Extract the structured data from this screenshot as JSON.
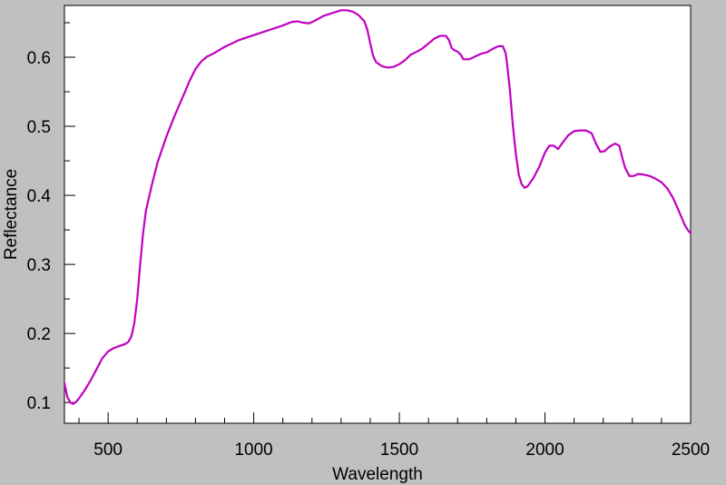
{
  "chart_data": {
    "type": "line",
    "title": "",
    "xlabel": "Wavelength",
    "ylabel": "Reflectance",
    "xlim": [
      350,
      2500
    ],
    "ylim": [
      0.07,
      0.675
    ],
    "x_ticks": [
      500,
      1000,
      1500,
      2000,
      2500
    ],
    "y_ticks": [
      0.1,
      0.2,
      0.3,
      0.4,
      0.5,
      0.6
    ],
    "x_tick_labels": [
      "500",
      "1000",
      "1500",
      "2000",
      "2500"
    ],
    "y_tick_labels": [
      "0.1",
      "0.2",
      "0.3",
      "0.4",
      "0.5",
      "0.6"
    ],
    "x_minor_step": 100,
    "y_minor_step": 0.05,
    "grid": false,
    "legend": "none",
    "plot_background": "#ffffff",
    "page_background": "#c0c0c0",
    "series": [
      {
        "color": "#c000c0",
        "points": [
          [
            350,
            0.128
          ],
          [
            360,
            0.108
          ],
          [
            370,
            0.1
          ],
          [
            380,
            0.098
          ],
          [
            390,
            0.101
          ],
          [
            400,
            0.106
          ],
          [
            420,
            0.118
          ],
          [
            440,
            0.132
          ],
          [
            460,
            0.148
          ],
          [
            480,
            0.164
          ],
          [
            500,
            0.174
          ],
          [
            520,
            0.179
          ],
          [
            540,
            0.182
          ],
          [
            560,
            0.185
          ],
          [
            570,
            0.188
          ],
          [
            580,
            0.196
          ],
          [
            590,
            0.215
          ],
          [
            600,
            0.25
          ],
          [
            610,
            0.3
          ],
          [
            620,
            0.345
          ],
          [
            630,
            0.378
          ],
          [
            650,
            0.415
          ],
          [
            670,
            0.448
          ],
          [
            700,
            0.485
          ],
          [
            730,
            0.517
          ],
          [
            760,
            0.546
          ],
          [
            780,
            0.566
          ],
          [
            800,
            0.583
          ],
          [
            820,
            0.594
          ],
          [
            840,
            0.601
          ],
          [
            860,
            0.605
          ],
          [
            880,
            0.61
          ],
          [
            900,
            0.615
          ],
          [
            950,
            0.625
          ],
          [
            1000,
            0.632
          ],
          [
            1050,
            0.639
          ],
          [
            1100,
            0.646
          ],
          [
            1130,
            0.651
          ],
          [
            1150,
            0.652
          ],
          [
            1170,
            0.65
          ],
          [
            1190,
            0.649
          ],
          [
            1210,
            0.653
          ],
          [
            1240,
            0.66
          ],
          [
            1270,
            0.664
          ],
          [
            1300,
            0.668
          ],
          [
            1320,
            0.668
          ],
          [
            1340,
            0.666
          ],
          [
            1360,
            0.661
          ],
          [
            1380,
            0.652
          ],
          [
            1390,
            0.64
          ],
          [
            1400,
            0.62
          ],
          [
            1410,
            0.602
          ],
          [
            1420,
            0.593
          ],
          [
            1440,
            0.587
          ],
          [
            1460,
            0.585
          ],
          [
            1480,
            0.586
          ],
          [
            1500,
            0.59
          ],
          [
            1520,
            0.596
          ],
          [
            1540,
            0.604
          ],
          [
            1560,
            0.608
          ],
          [
            1580,
            0.613
          ],
          [
            1600,
            0.62
          ],
          [
            1620,
            0.627
          ],
          [
            1640,
            0.631
          ],
          [
            1660,
            0.631
          ],
          [
            1670,
            0.625
          ],
          [
            1680,
            0.613
          ],
          [
            1690,
            0.61
          ],
          [
            1700,
            0.608
          ],
          [
            1710,
            0.604
          ],
          [
            1720,
            0.597
          ],
          [
            1740,
            0.597
          ],
          [
            1760,
            0.601
          ],
          [
            1780,
            0.605
          ],
          [
            1800,
            0.607
          ],
          [
            1820,
            0.612
          ],
          [
            1840,
            0.616
          ],
          [
            1855,
            0.616
          ],
          [
            1865,
            0.606
          ],
          [
            1870,
            0.59
          ],
          [
            1880,
            0.55
          ],
          [
            1890,
            0.5
          ],
          [
            1900,
            0.46
          ],
          [
            1910,
            0.43
          ],
          [
            1920,
            0.416
          ],
          [
            1930,
            0.411
          ],
          [
            1940,
            0.413
          ],
          [
            1960,
            0.425
          ],
          [
            1980,
            0.441
          ],
          [
            2000,
            0.462
          ],
          [
            2015,
            0.472
          ],
          [
            2030,
            0.472
          ],
          [
            2045,
            0.467
          ],
          [
            2060,
            0.476
          ],
          [
            2080,
            0.487
          ],
          [
            2100,
            0.493
          ],
          [
            2120,
            0.494
          ],
          [
            2140,
            0.494
          ],
          [
            2160,
            0.49
          ],
          [
            2175,
            0.475
          ],
          [
            2190,
            0.463
          ],
          [
            2205,
            0.464
          ],
          [
            2220,
            0.47
          ],
          [
            2240,
            0.475
          ],
          [
            2255,
            0.472
          ],
          [
            2265,
            0.455
          ],
          [
            2275,
            0.44
          ],
          [
            2290,
            0.428
          ],
          [
            2305,
            0.428
          ],
          [
            2320,
            0.431
          ],
          [
            2340,
            0.43
          ],
          [
            2360,
            0.428
          ],
          [
            2380,
            0.424
          ],
          [
            2400,
            0.419
          ],
          [
            2420,
            0.41
          ],
          [
            2440,
            0.396
          ],
          [
            2460,
            0.377
          ],
          [
            2480,
            0.357
          ],
          [
            2490,
            0.35
          ],
          [
            2500,
            0.345
          ]
        ]
      }
    ]
  }
}
